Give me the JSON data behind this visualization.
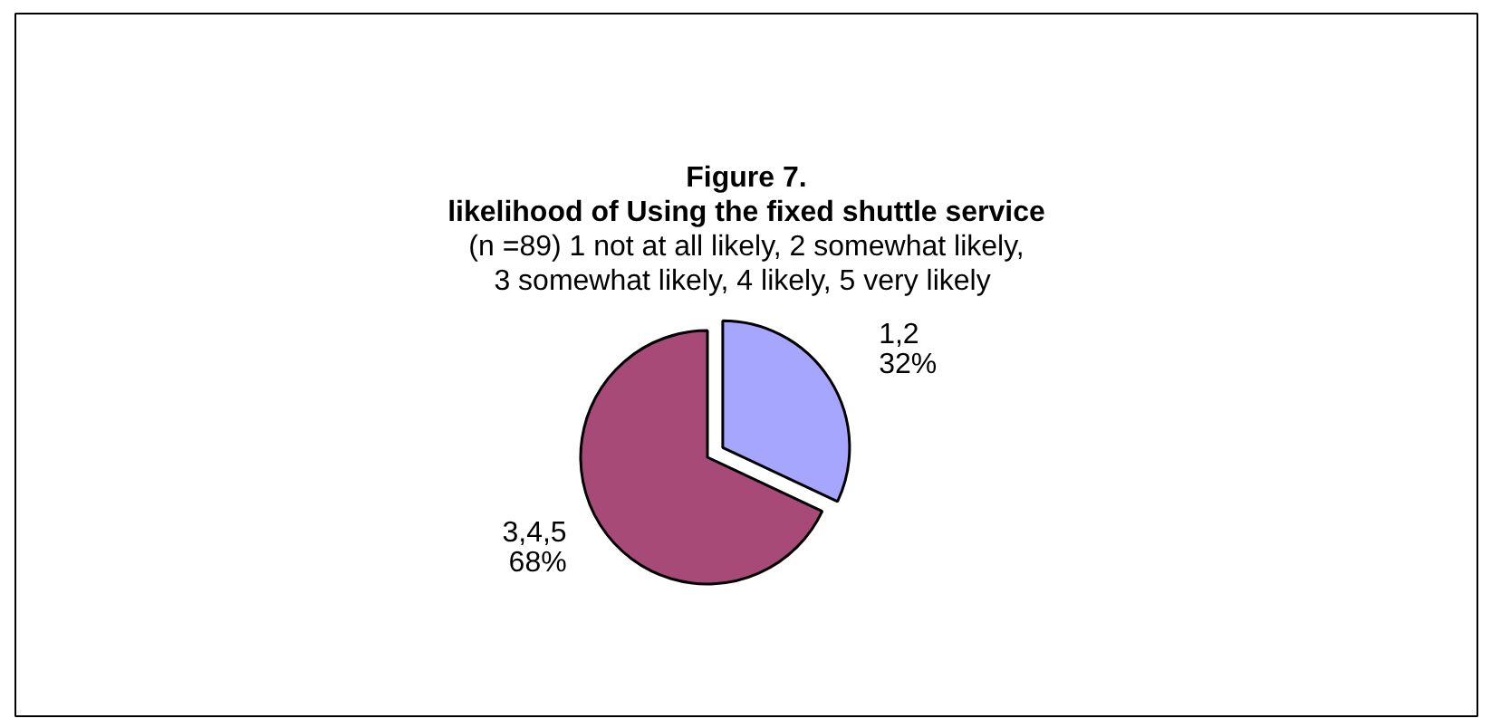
{
  "chart_data": {
    "type": "pie",
    "title": "Figure 7.\nlikelihood of Using the fixed shuttle service",
    "subtitle": "(n =89) 1 not at all likely, 2 somewhat likely,\n3 somewhat likely,  4 likely, 5 very likely",
    "categories": [
      "1,2",
      "3,4,5"
    ],
    "values": [
      32,
      68
    ],
    "colors": [
      "#a6a6ff",
      "#a84a78"
    ],
    "value_labels": [
      "32%",
      "68%"
    ]
  }
}
